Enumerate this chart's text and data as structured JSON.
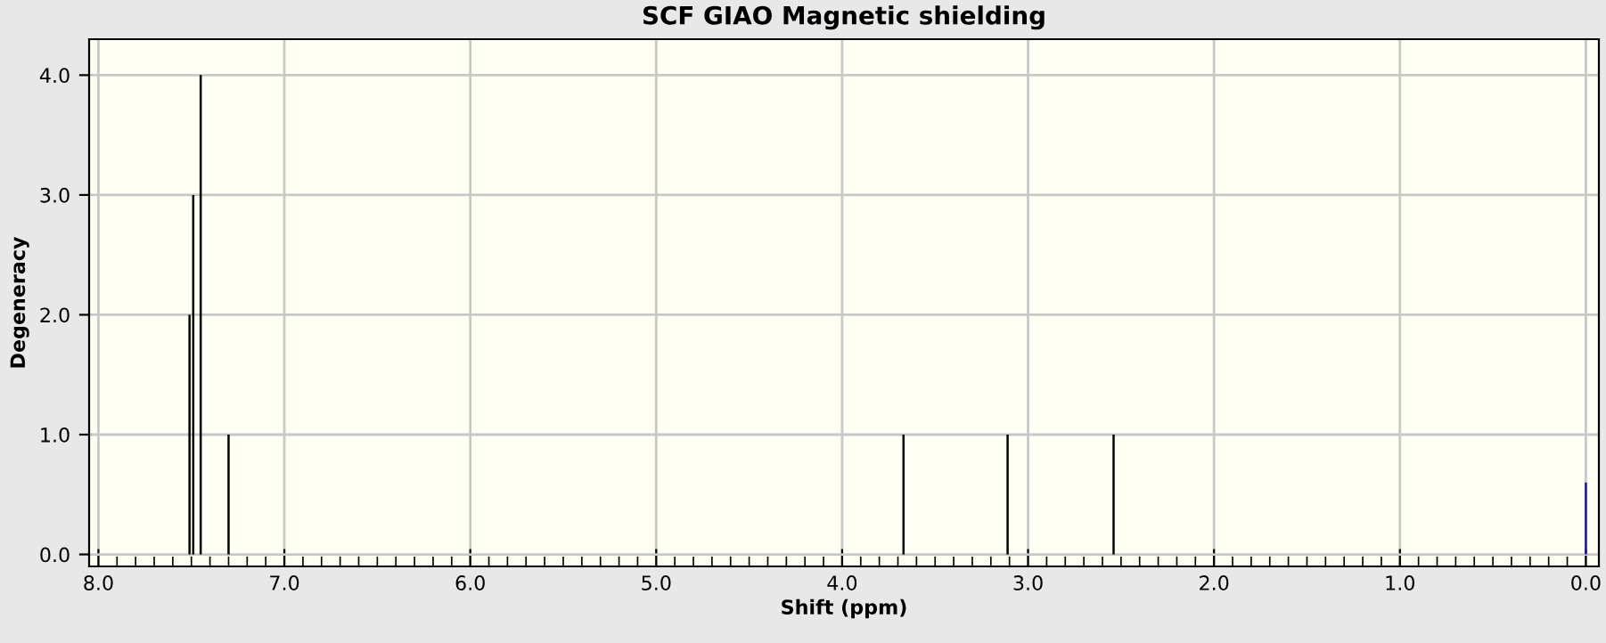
{
  "chart_data": {
    "type": "bar",
    "title": "SCF GIAO Magnetic shielding",
    "xlabel": "Shift (ppm)",
    "ylabel": "Degeneracy",
    "x": [
      7.51,
      7.49,
      7.45,
      7.3,
      3.67,
      3.11,
      2.54,
      0.0
    ],
    "values": [
      2,
      3,
      4,
      1,
      1,
      1,
      1,
      0.6
    ],
    "colors": [
      "#000000",
      "#000000",
      "#000000",
      "#000000",
      "#000000",
      "#000000",
      "#000000",
      "#1a1a8c"
    ],
    "xlim": [
      8.05,
      -0.07
    ],
    "ylim": [
      -0.1,
      4.3
    ],
    "xticks": [
      {
        "value": 8,
        "label": "8.0"
      },
      {
        "value": 7,
        "label": "7.0"
      },
      {
        "value": 6,
        "label": "6.0"
      },
      {
        "value": 5,
        "label": "5.0"
      },
      {
        "value": 4,
        "label": "4.0"
      },
      {
        "value": 3,
        "label": "3.0"
      },
      {
        "value": 2,
        "label": "2.0"
      },
      {
        "value": 1,
        "label": "1.0"
      },
      {
        "value": 0,
        "label": "0.0"
      }
    ],
    "yticks": [
      {
        "value": 0,
        "label": "0.0"
      },
      {
        "value": 1,
        "label": "1.0"
      },
      {
        "value": 2,
        "label": "2.0"
      },
      {
        "value": 3,
        "label": "3.0"
      },
      {
        "value": 4,
        "label": "4.0"
      }
    ],
    "grid": true
  }
}
